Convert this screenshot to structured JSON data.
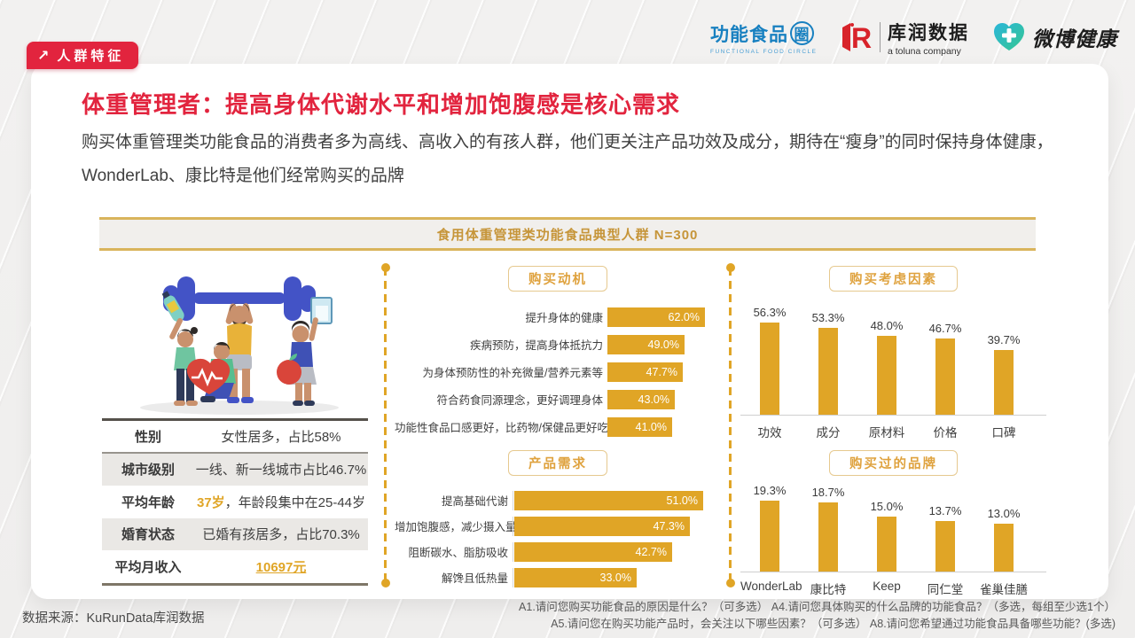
{
  "header": {
    "badge": "人群特征",
    "logos": {
      "ffc_main": "功能食品",
      "ffc_circle": "圈",
      "ffc_sub": "FUNCTIONAL FOOD CIRCLE",
      "kr_name": "库润数据",
      "kr_sub": "a toluna company",
      "weibo_name": "微博健康"
    }
  },
  "main": {
    "title": "体重管理者：提高身体代谢水平和增加饱腹感是核心需求",
    "description": "购买体重管理类功能食品的消费者多为高线、高收入的有孩人群，他们更关注产品功效及成分，期待在“瘦身”的同时保持身体健康，WonderLab、康比特是他们经常购买的品牌",
    "banner": "食用体重管理类功能食品典型人群 N=300"
  },
  "profile": {
    "rows": [
      {
        "label": "性别",
        "segments": [
          {
            "text": "女性居多，占比58%",
            "style": "normal"
          }
        ]
      },
      {
        "label": "城市级别",
        "segments": [
          {
            "text": "一线、新一线城市占比46.7%",
            "style": "normal"
          }
        ]
      },
      {
        "label": "平均年龄",
        "segments": [
          {
            "text": "37岁",
            "style": "gold"
          },
          {
            "text": "，年龄段集中在25-44岁",
            "style": "normal"
          }
        ]
      },
      {
        "label": "婚育状态",
        "segments": [
          {
            "text": "已婚有孩居多，占比70.3%",
            "style": "normal"
          }
        ]
      },
      {
        "label": "平均月收入",
        "segments": [
          {
            "text": "10697元",
            "style": "gold-underline"
          }
        ]
      }
    ]
  },
  "chart_data": [
    {
      "id": "purchase-motivation",
      "type": "bar",
      "orientation": "horizontal",
      "title": "购买动机",
      "categories": [
        "提升身体的健康",
        "疾病预防，提高身体抵抗力",
        "为身体预防性的补充微量/营养元素等",
        "符合药食同源理念，更好调理身体",
        "功能性食品口感更好，比药物/保健品更好吃"
      ],
      "values": [
        62.0,
        49.0,
        47.7,
        43.0,
        41.0
      ],
      "unit": "%",
      "bar_color": "#E0A526",
      "value_labels_inside": true
    },
    {
      "id": "product-needs",
      "type": "bar",
      "orientation": "horizontal",
      "title": "产品需求",
      "categories": [
        "提高基础代谢",
        "增加饱腹感，减少摄入量",
        "阻断碳水、脂肪吸收",
        "解馋且低热量"
      ],
      "values": [
        51.0,
        47.3,
        42.7,
        33.0
      ],
      "unit": "%",
      "bar_color": "#E0A526",
      "value_labels_inside": true
    },
    {
      "id": "consideration-factors",
      "type": "bar",
      "orientation": "vertical",
      "title": "购买考虑因素",
      "categories": [
        "功效",
        "成分",
        "原材料",
        "价格",
        "口碑"
      ],
      "values": [
        56.3,
        53.3,
        48.0,
        46.7,
        39.7
      ],
      "unit": "%",
      "bar_color": "#E0A526",
      "value_labels_above": true
    },
    {
      "id": "purchased-brands",
      "type": "bar",
      "orientation": "vertical",
      "title": "购买过的品牌",
      "categories": [
        "WonderLab",
        "康比特",
        "Keep",
        "同仁堂",
        "雀巢佳膳"
      ],
      "values": [
        19.3,
        18.7,
        15.0,
        13.7,
        13.0
      ],
      "unit": "%",
      "bar_color": "#E0A526",
      "value_labels_above": true
    }
  ],
  "footer": {
    "source": "数据来源：KuRunData库润数据",
    "notes": [
      "A1.请问您购买功能食品的原因是什么？（可多选）  A4.请问您具体购买的什么品牌的功能食品？（多选，每组至少选1个）",
      "A5.请问您在购买功能产品时，会关注以下哪些因素？（可多选）  A8.请问您希望通过功能食品具备哪些功能？(多选)"
    ]
  },
  "colors": {
    "accent_gold": "#E0A526",
    "brand_red": "#E2243E"
  }
}
